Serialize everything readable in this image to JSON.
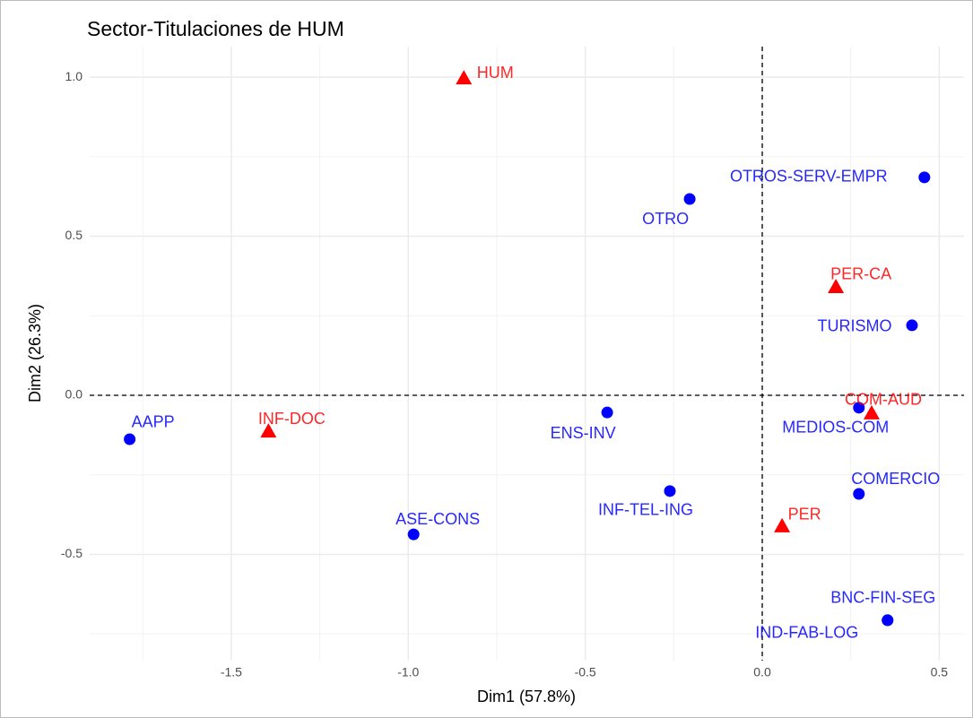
{
  "chart_data": {
    "type": "scatter",
    "title": "Sector-Titulaciones de HUM",
    "xlabel": "Dim1 (57.8%)",
    "ylabel": "Dim2 (26.3%)",
    "xlim": [
      -1.9,
      0.57
    ],
    "ylim": [
      -0.834,
      1.096
    ],
    "xticks": [
      -1.5,
      {
        "value": -1,
        "label": "-1.0"
      },
      -0.5,
      {
        "value": 0,
        "label": "0.0"
      },
      0.5
    ],
    "yticks": [
      -0.5,
      {
        "value": 0,
        "label": "0.0"
      },
      0.5,
      {
        "value": 1,
        "label": "1.0"
      }
    ],
    "grid": true,
    "hline": 0,
    "vline": 0,
    "series": [
      {
        "color": "#0000ff",
        "marker": "circle",
        "labels": [
          "AAPP",
          "ENS-INV",
          "ASE-CONS",
          "INF-TEL-ING",
          "OTRO",
          "OTROS-SERV-EMPR",
          "TURISMO",
          "MEDIOS-COM",
          "COMERCIO",
          "BNC-FIN-SEG",
          "IND-FAB-LOG"
        ],
        "x": [
          -1.787,
          -0.438,
          -0.985,
          -0.261,
          -0.205,
          0.458,
          0.423,
          0.273,
          0.273,
          0.354,
          0.354
        ],
        "values": [
          -0.138,
          -0.054,
          -0.437,
          -0.301,
          0.617,
          0.685,
          0.22,
          -0.039,
          -0.31,
          -0.707,
          -0.707
        ]
      },
      {
        "color": "#ff0000",
        "marker": "triangle",
        "labels": [
          "HUM",
          "PER-CA",
          "COM-AUD",
          "PER",
          "INF-DOC"
        ],
        "x": [
          -0.843,
          0.208,
          0.309,
          0.056,
          -1.395
        ],
        "values": [
          0.997,
          0.341,
          -0.056,
          -0.411,
          -0.113
        ]
      }
    ]
  }
}
